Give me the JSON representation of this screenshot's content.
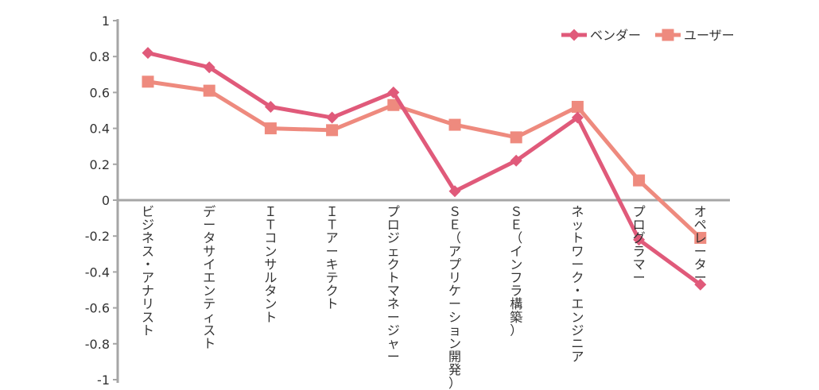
{
  "chart_data": {
    "type": "line",
    "title": "",
    "xlabel": "",
    "ylabel": "",
    "ylim": [
      -1,
      1
    ],
    "yticks": [
      1,
      0.8,
      0.6,
      0.4,
      0.2,
      0,
      -0.2,
      -0.4,
      -0.6,
      -0.8,
      -1
    ],
    "ytick_labels": [
      "1",
      "0.8",
      "0.6",
      "0.4",
      "0.2",
      "0",
      "-0.2",
      "-0.4",
      "-0.6",
      "-0.8",
      "-1"
    ],
    "grid": false,
    "legend_position": "top-right",
    "categories": [
      "ビジネス・アナリスト",
      "データサイエンティスト",
      "ＩＴコンサルタント",
      "ＩＴアーキテクト",
      "プロジェクトマネージャー",
      "ＳＥ（アプリケーション開発）",
      "ＳＥ（インフラ構築）",
      "ネットワーク・エンジニア",
      "プログラマー",
      "オペレーター"
    ],
    "series": [
      {
        "name": "ベンダー",
        "marker": "diamond",
        "color": "#e05a7a",
        "values": [
          0.82,
          0.74,
          0.52,
          0.46,
          0.6,
          0.05,
          0.22,
          0.46,
          -0.22,
          -0.47
        ]
      },
      {
        "name": "ユーザー",
        "marker": "square",
        "color": "#ee8a7e",
        "values": [
          0.66,
          0.61,
          0.4,
          0.39,
          0.53,
          0.42,
          0.35,
          0.52,
          0.11,
          -0.21
        ]
      }
    ],
    "axis_color": "#a6a6a6"
  }
}
